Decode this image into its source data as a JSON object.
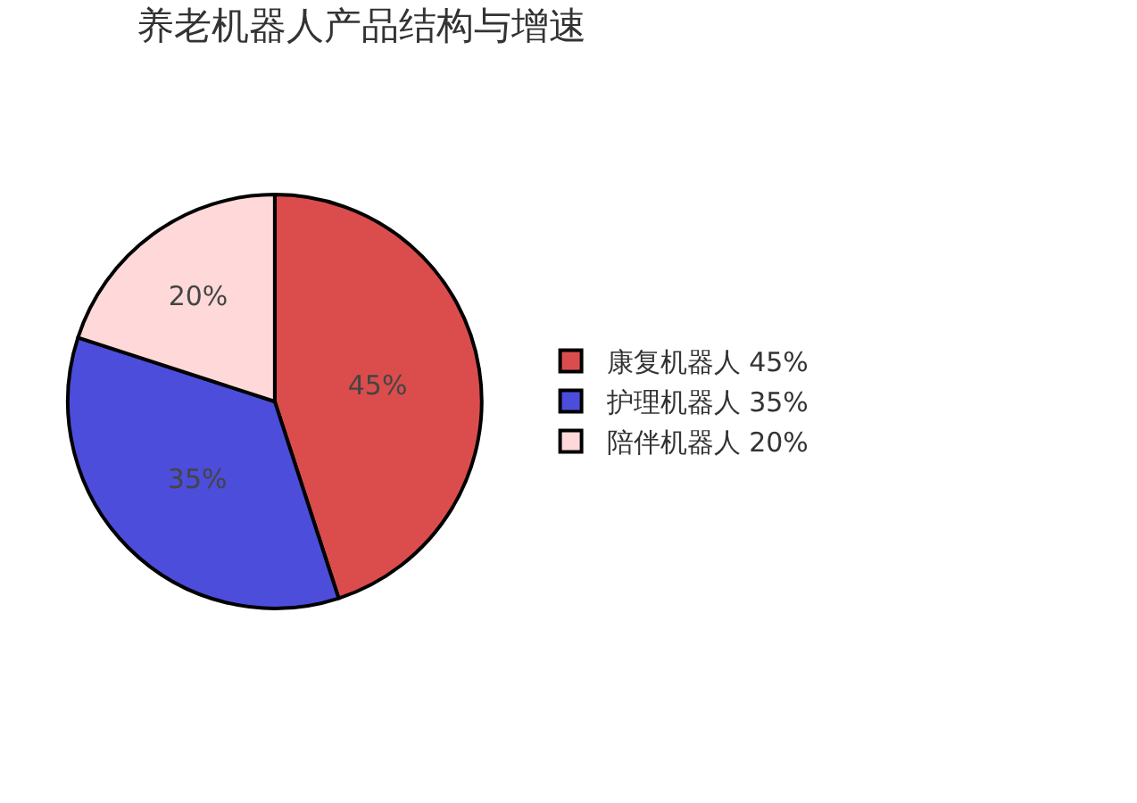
{
  "chart_data": {
    "type": "pie",
    "title": "养老机器人产品结构与增速",
    "categories": [
      "康复机器人",
      "护理机器人",
      "陪伴机器人"
    ],
    "values": [
      45,
      35,
      20
    ],
    "value_labels": [
      "45%",
      "35%",
      "20%"
    ],
    "colors": [
      "#db4d4d",
      "#4d4ddb",
      "#ffd9d9"
    ],
    "legend": "right"
  }
}
